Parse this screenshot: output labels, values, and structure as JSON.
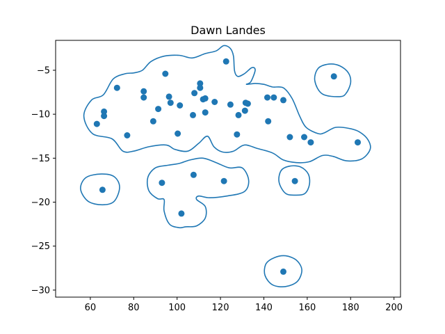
{
  "chart_data": {
    "type": "scatter",
    "title": "Dawn Landes",
    "xlabel": "",
    "ylabel": "",
    "xlim": [
      44,
      203
    ],
    "ylim": [
      -30.8,
      -1.6
    ],
    "xticks": [
      60,
      80,
      100,
      120,
      140,
      160,
      180,
      200
    ],
    "yticks": [
      -5,
      -10,
      -15,
      -20,
      -25,
      -30
    ],
    "grid": false,
    "legend": "none",
    "color": "#1f77b4",
    "points": [
      {
        "x": 63,
        "y": -11.1
      },
      {
        "x": 66.3,
        "y": -9.7
      },
      {
        "x": 66.3,
        "y": -10.2
      },
      {
        "x": 72.3,
        "y": -7.0
      },
      {
        "x": 77,
        "y": -12.4
      },
      {
        "x": 84.6,
        "y": -7.4
      },
      {
        "x": 84.6,
        "y": -8.1
      },
      {
        "x": 89,
        "y": -10.8
      },
      {
        "x": 91.3,
        "y": -9.4
      },
      {
        "x": 94.6,
        "y": -5.4
      },
      {
        "x": 96.3,
        "y": -8.0
      },
      {
        "x": 97,
        "y": -8.7
      },
      {
        "x": 100.3,
        "y": -12.2
      },
      {
        "x": 101.3,
        "y": -9.0
      },
      {
        "x": 107.3,
        "y": -10.1
      },
      {
        "x": 108,
        "y": -7.6
      },
      {
        "x": 110.6,
        "y": -6.5
      },
      {
        "x": 110.6,
        "y": -7.0
      },
      {
        "x": 112,
        "y": -8.3
      },
      {
        "x": 113,
        "y": -8.2
      },
      {
        "x": 113,
        "y": -9.8
      },
      {
        "x": 117.3,
        "y": -8.6
      },
      {
        "x": 122.6,
        "y": -4.0
      },
      {
        "x": 124.6,
        "y": -8.9
      },
      {
        "x": 127.6,
        "y": -12.3
      },
      {
        "x": 128.3,
        "y": -10.1
      },
      {
        "x": 131.3,
        "y": -9.6
      },
      {
        "x": 131.6,
        "y": -8.7
      },
      {
        "x": 132.6,
        "y": -8.8
      },
      {
        "x": 141.6,
        "y": -8.1
      },
      {
        "x": 142,
        "y": -10.8
      },
      {
        "x": 144.6,
        "y": -8.1
      },
      {
        "x": 149,
        "y": -8.4
      },
      {
        "x": 152,
        "y": -12.6
      },
      {
        "x": 158.6,
        "y": -12.6
      },
      {
        "x": 161.6,
        "y": -13.2
      },
      {
        "x": 172.3,
        "y": -5.7
      },
      {
        "x": 183.3,
        "y": -13.2
      },
      {
        "x": 65.6,
        "y": -18.6
      },
      {
        "x": 93,
        "y": -17.8
      },
      {
        "x": 102,
        "y": -21.3
      },
      {
        "x": 107.6,
        "y": -16.9
      },
      {
        "x": 121.6,
        "y": -17.6
      },
      {
        "x": 154.3,
        "y": -17.6
      },
      {
        "x": 149,
        "y": -27.9
      }
    ],
    "contours": [
      [
        [
          70,
          -12.8
        ],
        [
          61,
          -12.2
        ],
        [
          57,
          -10.2
        ],
        [
          60.5,
          -8.4
        ],
        [
          66,
          -7.8
        ],
        [
          70.5,
          -6.0
        ],
        [
          76,
          -5.4
        ],
        [
          80,
          -5.3
        ],
        [
          84,
          -5.0
        ],
        [
          88,
          -4.0
        ],
        [
          94,
          -3.4
        ],
        [
          101,
          -3.3
        ],
        [
          107,
          -3.6
        ],
        [
          113,
          -3.1
        ],
        [
          118,
          -2.8
        ],
        [
          121.5,
          -2.2
        ],
        [
          124.5,
          -2.5
        ],
        [
          126,
          -3.4
        ],
        [
          126.5,
          -5.1
        ],
        [
          128,
          -5.7
        ],
        [
          131,
          -5.4
        ],
        [
          134.5,
          -4.7
        ],
        [
          136,
          -5.0
        ],
        [
          134,
          -6.3
        ],
        [
          132,
          -6.6
        ],
        [
          136,
          -6.5
        ],
        [
          140,
          -6.6
        ],
        [
          144,
          -6.9
        ],
        [
          149,
          -7.0
        ],
        [
          153,
          -8.2
        ],
        [
          156.5,
          -10.2
        ],
        [
          159.5,
          -11.5
        ],
        [
          165,
          -12.2
        ],
        [
          168,
          -12.1
        ],
        [
          173,
          -11.5
        ],
        [
          179,
          -11.6
        ],
        [
          184,
          -12.0
        ],
        [
          188,
          -12.9
        ],
        [
          189,
          -14.0
        ],
        [
          185,
          -15.1
        ],
        [
          178,
          -15.3
        ],
        [
          172,
          -14.8
        ],
        [
          167,
          -14.7
        ],
        [
          161,
          -15.4
        ],
        [
          155,
          -15.5
        ],
        [
          149,
          -15.2
        ],
        [
          144,
          -14.4
        ],
        [
          137,
          -13.9
        ],
        [
          131,
          -13.5
        ],
        [
          126,
          -14.2
        ],
        [
          121,
          -14.3
        ],
        [
          117,
          -13.7
        ],
        [
          114,
          -12.5
        ],
        [
          110,
          -13.3
        ],
        [
          105,
          -14.2
        ],
        [
          99,
          -14.0
        ],
        [
          95,
          -13.5
        ],
        [
          87,
          -13.7
        ],
        [
          80,
          -14.2
        ],
        [
          75,
          -14.2
        ],
        [
          70,
          -12.8
        ]
      ],
      [
        [
          175,
          -8.0
        ],
        [
          167,
          -7.7
        ],
        [
          163.5,
          -6.2
        ],
        [
          165,
          -4.8
        ],
        [
          170,
          -4.3
        ],
        [
          175,
          -4.5
        ],
        [
          179,
          -5.3
        ],
        [
          180,
          -6.4
        ],
        [
          178,
          -7.6
        ],
        [
          175,
          -8.0
        ]
      ],
      [
        [
          65.5,
          -20.3
        ],
        [
          59,
          -19.9
        ],
        [
          55.5,
          -18.5
        ],
        [
          58,
          -17.2
        ],
        [
          65,
          -16.8
        ],
        [
          71,
          -17.1
        ],
        [
          73.5,
          -18.3
        ],
        [
          71,
          -19.9
        ],
        [
          65.5,
          -20.3
        ]
      ],
      [
        [
          101,
          -22.9
        ],
        [
          96.5,
          -22.5
        ],
        [
          94,
          -21.0
        ],
        [
          94,
          -19.7
        ],
        [
          91,
          -19.6
        ],
        [
          87,
          -18.7
        ],
        [
          86.5,
          -17.2
        ],
        [
          90,
          -16.1
        ],
        [
          96,
          -15.8
        ],
        [
          101,
          -15.6
        ],
        [
          106,
          -15.2
        ],
        [
          112,
          -15.0
        ],
        [
          118,
          -15.5
        ],
        [
          124,
          -16.1
        ],
        [
          130,
          -16.1
        ],
        [
          133,
          -17.5
        ],
        [
          131,
          -18.8
        ],
        [
          123,
          -19.3
        ],
        [
          115,
          -19.5
        ],
        [
          110,
          -19.3
        ],
        [
          109,
          -19.7
        ],
        [
          113,
          -20.5
        ],
        [
          113,
          -21.8
        ],
        [
          109,
          -22.7
        ],
        [
          104,
          -22.8
        ],
        [
          101,
          -22.9
        ]
      ],
      [
        [
          155,
          -19.2
        ],
        [
          150,
          -19.0
        ],
        [
          147,
          -17.7
        ],
        [
          148,
          -16.4
        ],
        [
          152,
          -15.9
        ],
        [
          157,
          -16.0
        ],
        [
          160.5,
          -16.8
        ],
        [
          161,
          -18.0
        ],
        [
          159,
          -19.0
        ],
        [
          155,
          -19.2
        ]
      ],
      [
        [
          150,
          -29.6
        ],
        [
          144,
          -29.4
        ],
        [
          140.5,
          -28.3
        ],
        [
          141,
          -27.0
        ],
        [
          145,
          -26.3
        ],
        [
          150,
          -26.1
        ],
        [
          155,
          -26.6
        ],
        [
          157.5,
          -27.7
        ],
        [
          155.5,
          -29.0
        ],
        [
          150,
          -29.6
        ]
      ]
    ]
  }
}
